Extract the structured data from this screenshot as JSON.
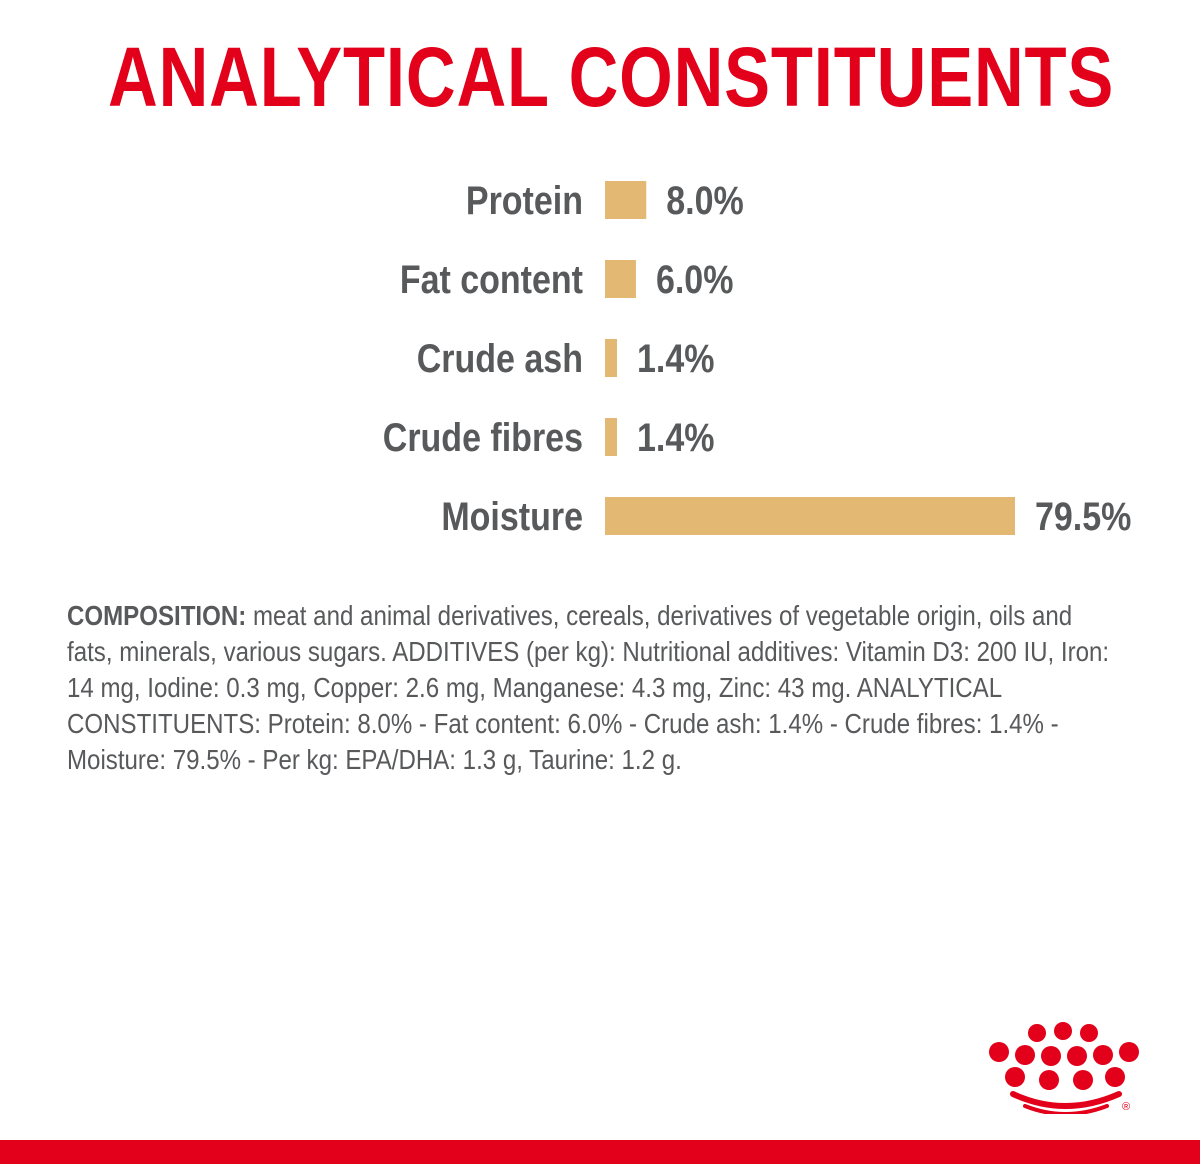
{
  "title": "ANALYTICAL CONSTITUENTS",
  "colors": {
    "title": "#e2001a",
    "bar": "#e2b872",
    "label": "#58595b",
    "brand": "#e2001a"
  },
  "chart_data": {
    "type": "bar",
    "orientation": "horizontal",
    "categories": [
      "Protein",
      "Fat content",
      "Crude ash",
      "Crude fibres",
      "Moisture"
    ],
    "values": [
      8.0,
      6.0,
      1.4,
      1.4,
      79.5
    ],
    "value_labels": [
      "8.0%",
      "6.0%",
      "1.4%",
      "1.4%",
      "79.5%"
    ],
    "unit": "%",
    "grid": false,
    "legend": "none"
  },
  "composition": {
    "label": "COMPOSITION:",
    "text": " meat and animal derivatives, cereals, derivatives of vegetable origin, oils and fats, minerals, various sugars. ADDITIVES (per kg): Nutritional additives: Vitamin D3: 200 IU, Iron: 14 mg, Iodine: 0.3 mg, Copper: 2.6 mg, Manganese: 4.3 mg, Zinc: 43 mg. ANALYTICAL CONSTITUENTS: Protein: 8.0% - Fat content: 6.0% - Crude ash: 1.4% - Crude fibres: 1.4% - Moisture: 79.5% - Per kg: EPA/DHA: 1.3 g, Taurine: 1.2 g."
  },
  "logo": {
    "icon": "royal-crown-icon",
    "registered_mark": "®"
  }
}
